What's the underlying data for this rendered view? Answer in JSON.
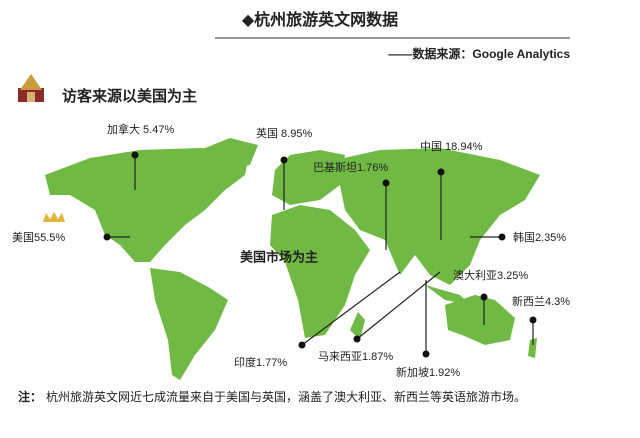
{
  "header": {
    "title": "◆杭州旅游英文网数据",
    "source": "——数据来源：Google Analytics"
  },
  "section": {
    "title": "访客来源以美国为主"
  },
  "map": {
    "center_label": "美国市场为主",
    "pins": [
      {
        "label": "加拿大 5.47%"
      },
      {
        "label": "英国 8.95%"
      },
      {
        "label": "巴基斯坦1.76%"
      },
      {
        "label": "中国 18.94%"
      },
      {
        "label": "美国55.5%"
      },
      {
        "label": "韩国2.35%"
      },
      {
        "label": "澳大利亚3.25%"
      },
      {
        "label": "新西兰4.3%"
      },
      {
        "label": "印度1.77%"
      },
      {
        "label": "马来西亚1.87%"
      },
      {
        "label": "新加坡1.92%"
      }
    ]
  },
  "note": {
    "prefix": "注：",
    "text": "杭州旅游英文网近七成流量来自于美国与英国，涵盖了澳大利亚、新西兰等英语旅游市场。"
  }
}
